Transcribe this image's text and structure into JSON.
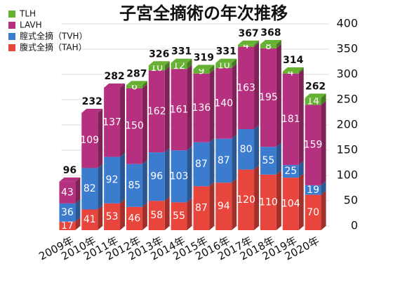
{
  "chart_data": {
    "type": "bar3d-stacked",
    "title": "子宮全摘術の年次推移",
    "categories": [
      "2009年",
      "2010年",
      "2011年",
      "2012年",
      "2013年",
      "2014年",
      "2015年",
      "2016年",
      "2017年",
      "2018年",
      "2019年",
      "2020年"
    ],
    "series": [
      {
        "name": "TLH",
        "color": "#66b032",
        "values": [
          null,
          null,
          null,
          6,
          10,
          12,
          9,
          10,
          4,
          8,
          4,
          14
        ]
      },
      {
        "name": "LAVH",
        "color": "#b5307e",
        "values": [
          43,
          109,
          137,
          150,
          162,
          161,
          136,
          140,
          163,
          195,
          181,
          159
        ]
      },
      {
        "name": "腟式全摘（TVH）",
        "color": "#3c7ccf",
        "values": [
          36,
          82,
          92,
          85,
          96,
          103,
          87,
          87,
          80,
          55,
          25,
          19
        ]
      },
      {
        "name": "腹式全摘（TAH）",
        "color": "#e8453c",
        "values": [
          17,
          41,
          53,
          46,
          58,
          55,
          87,
          94,
          120,
          110,
          104,
          70
        ]
      }
    ],
    "totals": [
      96,
      232,
      282,
      287,
      326,
      331,
      319,
      331,
      367,
      368,
      314,
      262
    ],
    "ylim": [
      0,
      400
    ],
    "yticks": [
      0,
      50,
      100,
      150,
      200,
      250,
      300,
      350,
      400
    ],
    "grid": true,
    "legend": "top-left"
  }
}
